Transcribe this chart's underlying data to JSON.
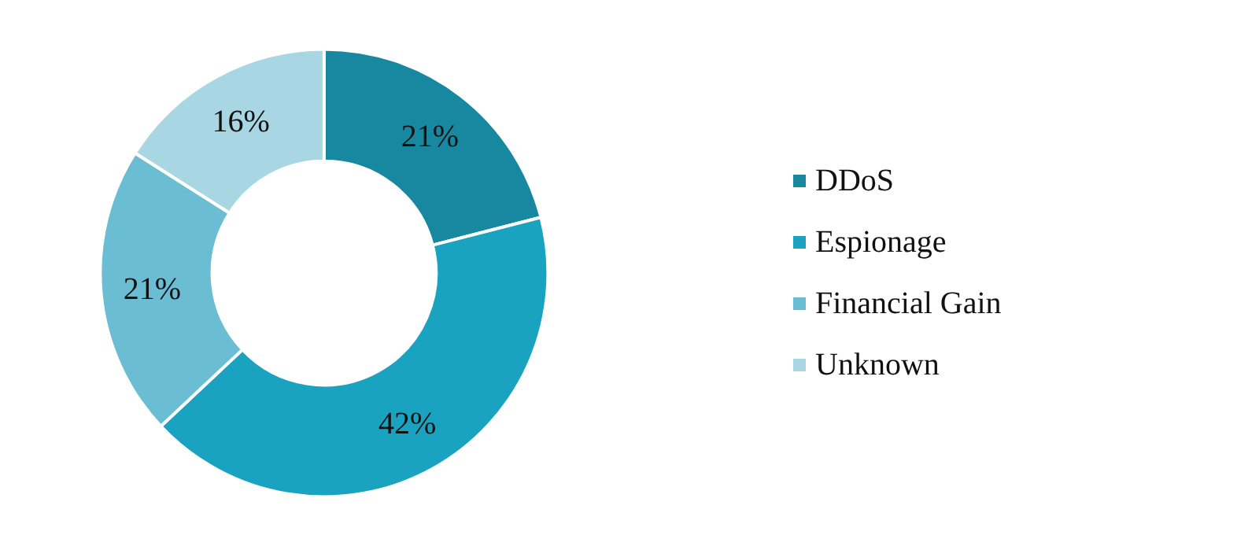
{
  "chart_data": {
    "type": "donut",
    "categories": [
      "DDoS",
      "Espionage",
      "Financial Gain",
      "Unknown"
    ],
    "values": [
      21,
      42,
      21,
      16
    ],
    "colors": [
      "#1888a0",
      "#1aa3c0",
      "#6bbdd3",
      "#a9d6e3"
    ],
    "legend": "right",
    "value_labels": [
      "21%",
      "42%",
      "21%",
      "16%"
    ]
  }
}
